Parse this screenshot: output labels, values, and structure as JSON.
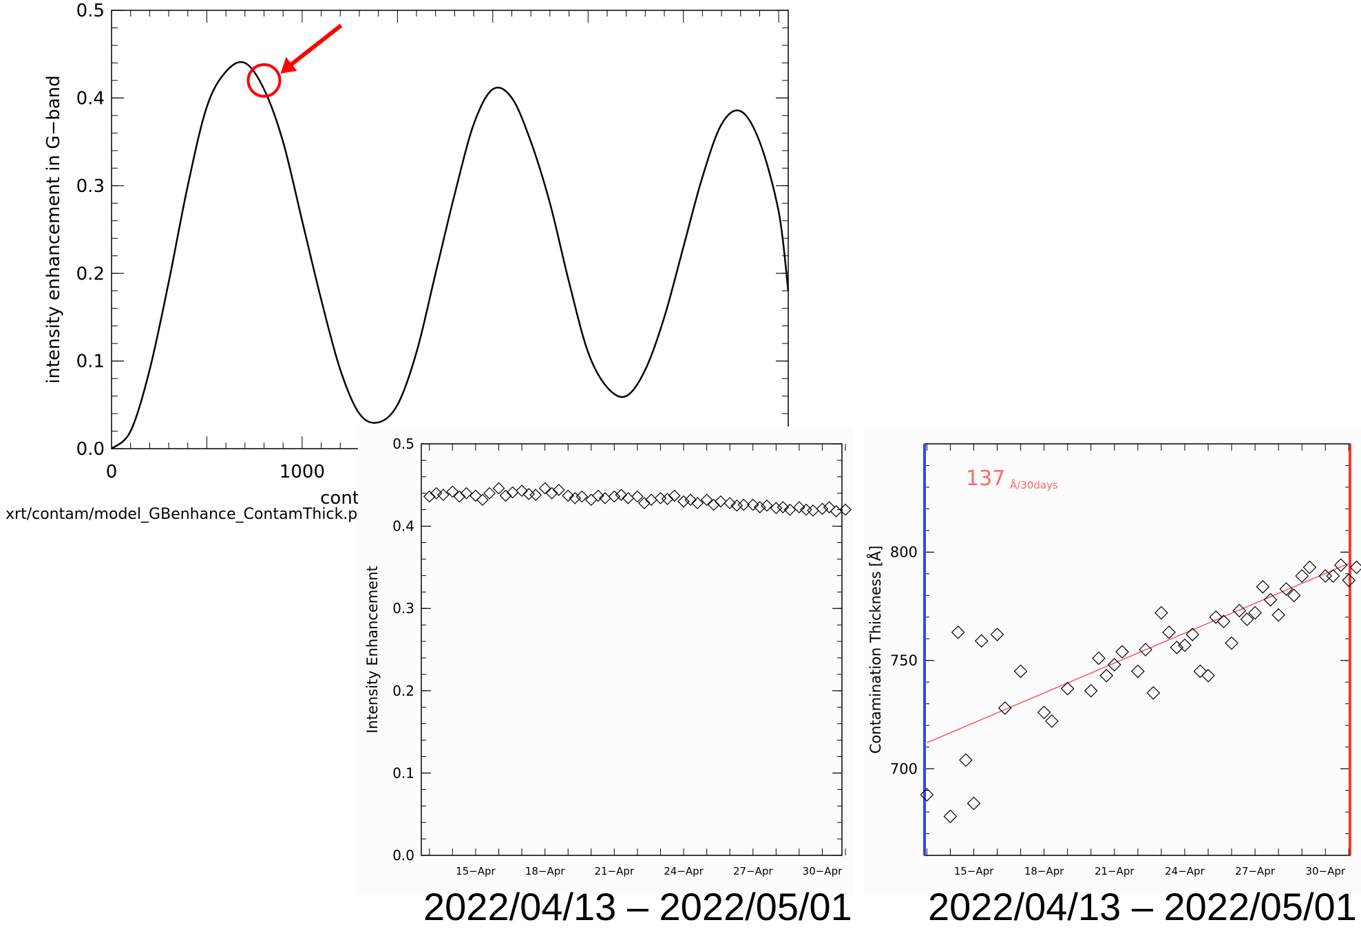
{
  "chart_data": [
    {
      "type": "line",
      "title": "",
      "xlabel": "cont",
      "ylabel": "intensity enhancement in G−band",
      "footer": "xrt/contam/model_GBenhance_ContamThick.pro",
      "xlim": [
        0,
        3550
      ],
      "ylim": [
        0,
        0.5
      ],
      "x_ticks": [
        "0",
        "1000"
      ],
      "y_ticks": [
        "0.0",
        "0.1",
        "0.2",
        "0.3",
        "0.4",
        "0.5"
      ],
      "series": [
        {
          "x": [
            0,
            100,
            200,
            300,
            400,
            500,
            600,
            700,
            800,
            900,
            1000,
            1100,
            1200,
            1300,
            1400,
            1500,
            1600,
            1700,
            1800,
            1900,
            2000,
            2100,
            2200,
            2300,
            2400,
            2500,
            2600,
            2700,
            2800,
            2900,
            3000,
            3100,
            3200,
            3300,
            3400,
            3500,
            3550
          ],
          "y": [
            0.0,
            0.02,
            0.09,
            0.19,
            0.3,
            0.39,
            0.43,
            0.44,
            0.41,
            0.35,
            0.26,
            0.17,
            0.09,
            0.04,
            0.03,
            0.05,
            0.11,
            0.2,
            0.29,
            0.37,
            0.41,
            0.4,
            0.35,
            0.28,
            0.19,
            0.11,
            0.07,
            0.06,
            0.09,
            0.15,
            0.23,
            0.31,
            0.37,
            0.385,
            0.35,
            0.27,
            0.18
          ]
        }
      ],
      "annotation": {
        "x": 800,
        "y": 0.42,
        "marker": "circle",
        "color": "#ff0000"
      }
    },
    {
      "type": "scatter",
      "title": "",
      "xlabel": "",
      "ylabel": "Intensity Enhancement",
      "ylim": [
        0,
        0.5
      ],
      "xlim": [
        "2022-04-13",
        "2022-05-01"
      ],
      "x_ticks": [
        "15−Apr",
        "18−Apr",
        "21−Apr",
        "24−Apr",
        "27−Apr",
        "30−Apr"
      ],
      "y_ticks": [
        "0.0",
        "0.1",
        "0.2",
        "0.3",
        "0.4",
        "0.5"
      ],
      "caption": "2022/04/13 – 2022/05/01",
      "series": [
        {
          "x": [
            "2022-04-13",
            "2022-04-13",
            "2022-04-13",
            "2022-04-14",
            "2022-04-14",
            "2022-04-14",
            "2022-04-15",
            "2022-04-15",
            "2022-04-15",
            "2022-04-16",
            "2022-04-16",
            "2022-04-16",
            "2022-04-17",
            "2022-04-17",
            "2022-04-17",
            "2022-04-18",
            "2022-04-18",
            "2022-04-18",
            "2022-04-19",
            "2022-04-19",
            "2022-04-19",
            "2022-04-20",
            "2022-04-20",
            "2022-04-20",
            "2022-04-21",
            "2022-04-21",
            "2022-04-21",
            "2022-04-22",
            "2022-04-22",
            "2022-04-22",
            "2022-04-23",
            "2022-04-23",
            "2022-04-23",
            "2022-04-24",
            "2022-04-24",
            "2022-04-24",
            "2022-04-25",
            "2022-04-25",
            "2022-04-25",
            "2022-04-26",
            "2022-04-26",
            "2022-04-26",
            "2022-04-27",
            "2022-04-27",
            "2022-04-27",
            "2022-04-28",
            "2022-04-28",
            "2022-04-28",
            "2022-04-29",
            "2022-04-29",
            "2022-04-29",
            "2022-04-30",
            "2022-04-30",
            "2022-04-30",
            "2022-05-01"
          ],
          "y": [
            0.436,
            0.44,
            0.438,
            0.442,
            0.436,
            0.44,
            0.437,
            0.432,
            0.44,
            0.446,
            0.437,
            0.441,
            0.443,
            0.439,
            0.438,
            0.446,
            0.44,
            0.444,
            0.437,
            0.434,
            0.436,
            0.432,
            0.437,
            0.434,
            0.436,
            0.438,
            0.434,
            0.436,
            0.428,
            0.432,
            0.434,
            0.433,
            0.437,
            0.43,
            0.432,
            0.428,
            0.432,
            0.426,
            0.43,
            0.428,
            0.425,
            0.426,
            0.426,
            0.423,
            0.425,
            0.422,
            0.423,
            0.42,
            0.423,
            0.42,
            0.419,
            0.421,
            0.423,
            0.418,
            0.42
          ]
        }
      ]
    },
    {
      "type": "scatter",
      "title": "",
      "xlabel": "",
      "ylabel": "Contamination Thickness [Å]",
      "ylim": [
        660,
        850
      ],
      "xlim": [
        "2022-04-13",
        "2022-05-01"
      ],
      "x_ticks": [
        "15−Apr",
        "18−Apr",
        "21−Apr",
        "24−Apr",
        "27−Apr",
        "30−Apr"
      ],
      "y_ticks": [
        "700",
        "750",
        "800"
      ],
      "caption": "2022/04/13 – 2022/05/01",
      "annotation_rate": "137",
      "annotation_unit": "Å/30days",
      "trend_line": {
        "x": [
          "2022-04-13",
          "2022-05-01"
        ],
        "y": [
          712,
          795
        ],
        "color": "#ff5555"
      },
      "left_border_color": "#3344ff",
      "right_border_color": "#ff3333",
      "series": [
        {
          "x": [
            "2022-04-13",
            "2022-04-14",
            "2022-04-14",
            "2022-04-14",
            "2022-04-15",
            "2022-04-15",
            "2022-04-16",
            "2022-04-16",
            "2022-04-17",
            "2022-04-18",
            "2022-04-18",
            "2022-04-19",
            "2022-04-20",
            "2022-04-20",
            "2022-04-20",
            "2022-04-21",
            "2022-04-21",
            "2022-04-22",
            "2022-04-22",
            "2022-04-22",
            "2022-04-23",
            "2022-04-23",
            "2022-04-23",
            "2022-04-24",
            "2022-04-24",
            "2022-04-24",
            "2022-04-25",
            "2022-04-25",
            "2022-04-25",
            "2022-04-26",
            "2022-04-26",
            "2022-04-26",
            "2022-04-27",
            "2022-04-27",
            "2022-04-27",
            "2022-04-28",
            "2022-04-28",
            "2022-04-28",
            "2022-04-29",
            "2022-04-29",
            "2022-04-30",
            "2022-04-30",
            "2022-04-30",
            "2022-05-01",
            "2022-05-01"
          ],
          "y": [
            688,
            678,
            763,
            704,
            684,
            759,
            762,
            728,
            745,
            726,
            722,
            737,
            736,
            751,
            743,
            748,
            754,
            745,
            755,
            735,
            772,
            763,
            756,
            757,
            762,
            745,
            743,
            770,
            768,
            758,
            773,
            769,
            772,
            784,
            778,
            771,
            783,
            780,
            789,
            793,
            789,
            789,
            794,
            787,
            793
          ]
        }
      ]
    }
  ]
}
